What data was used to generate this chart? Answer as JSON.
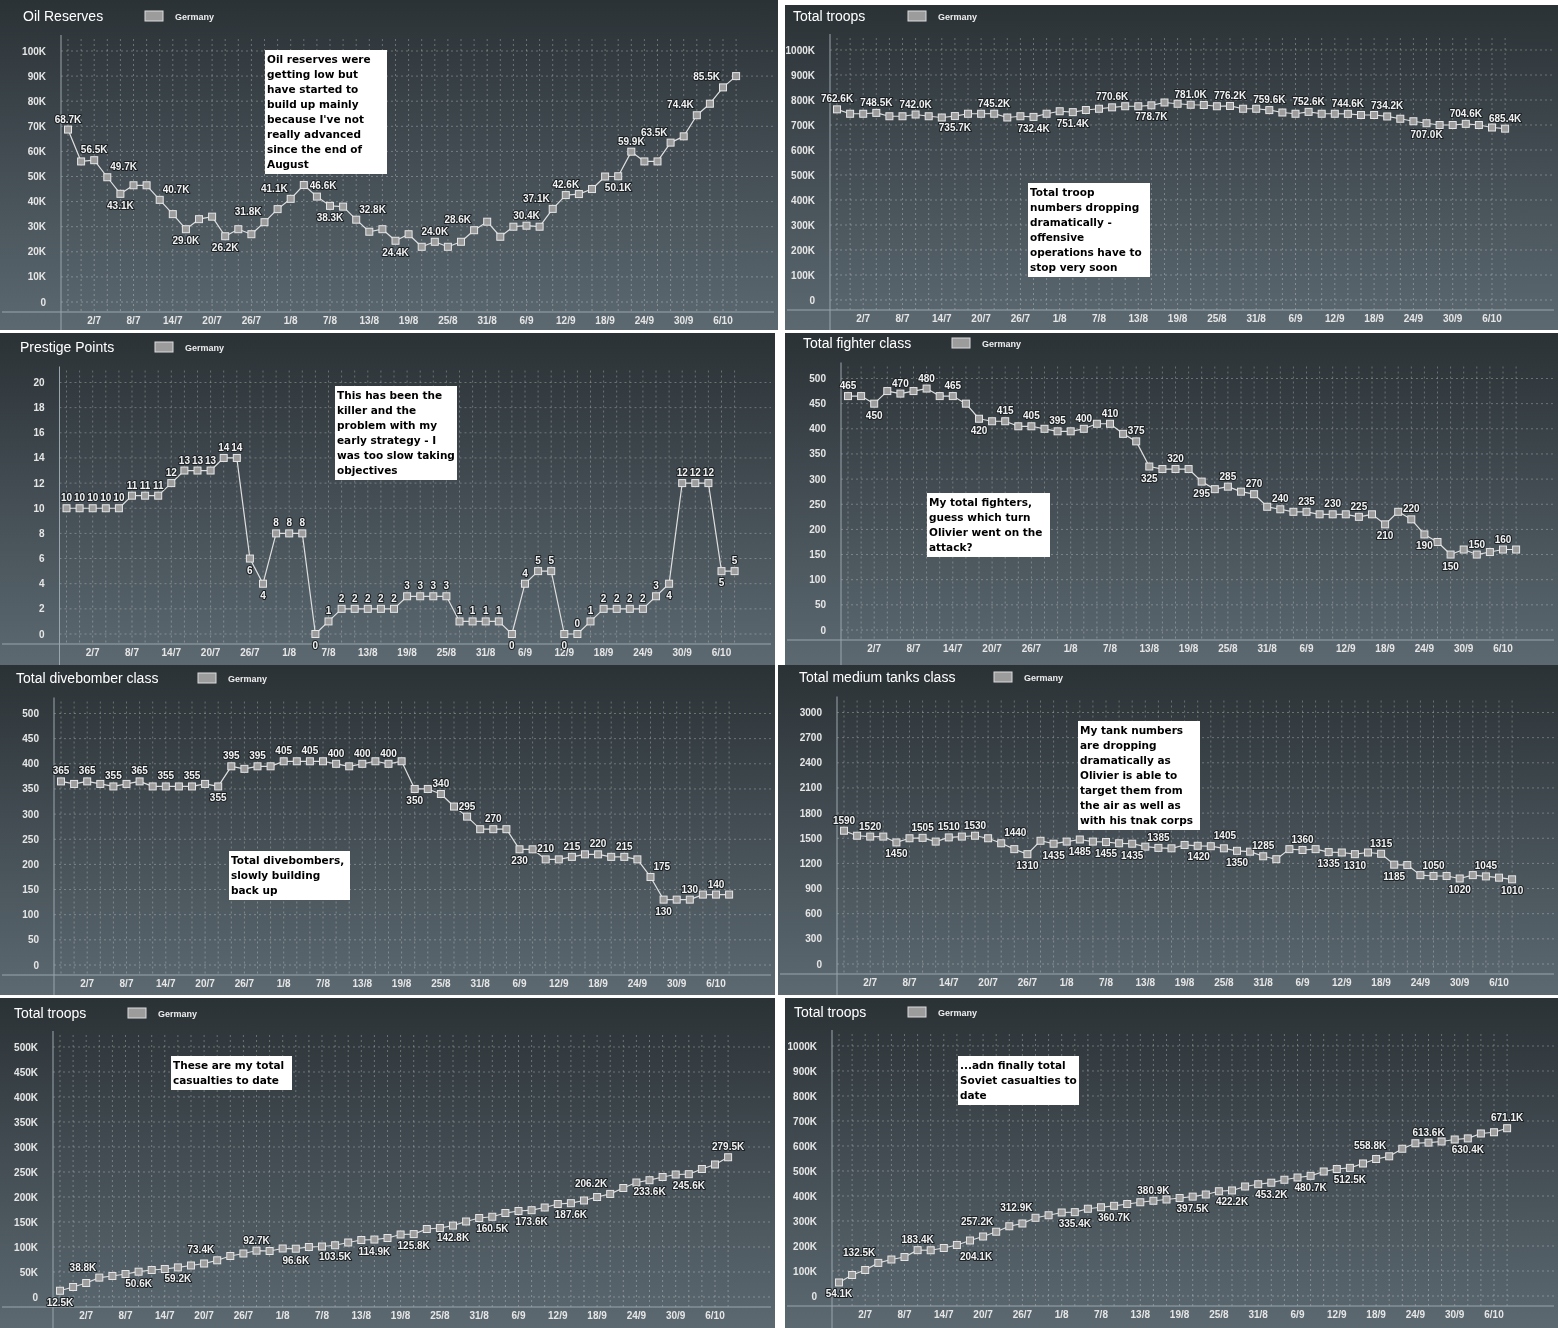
{
  "chart_data": [
    {
      "type": "line",
      "title": "Oil Reserves",
      "categories": [
        null,
        null,
        "2/7",
        null,
        null,
        "8/7",
        null,
        null,
        "14/7",
        null,
        null,
        "20/7",
        null,
        null,
        "26/7",
        null,
        null,
        "1/8",
        null,
        null,
        "7/8",
        null,
        null,
        "13/8",
        null,
        null,
        "19/8",
        null,
        null,
        "25/8",
        null,
        null,
        "31/8",
        null,
        null,
        "6/9",
        null,
        null,
        "12/9",
        null,
        null,
        "18/9",
        null,
        null,
        "24/9",
        null,
        null,
        "30/9",
        null,
        null,
        "6/10",
        null
      ],
      "series": [
        {
          "name": "Germany",
          "color": "#9c9c9c",
          "values": [
            68700,
            56000,
            56500,
            49700,
            43100,
            46500,
            46500,
            40700,
            35000,
            29000,
            33000,
            34000,
            26200,
            29000,
            27000,
            31800,
            37000,
            41100,
            46600,
            42000,
            38300,
            38000,
            32800,
            28000,
            29000,
            24400,
            27000,
            22000,
            24000,
            22000,
            24000,
            28600,
            32000,
            26000,
            30000,
            30400,
            30000,
            37100,
            42600,
            43000,
            45000,
            50000,
            50100,
            59900,
            56000,
            56000,
            63500,
            66000,
            74400,
            79000,
            85500,
            90000
          ],
          "value_labels": [
            "68.7K",
            null,
            "56.5K",
            "49.7K",
            "43.1K",
            null,
            null,
            "40.7K",
            null,
            "29.0K",
            null,
            null,
            "26.2K",
            null,
            null,
            "31.8K",
            null,
            "41.1K",
            "46.6K",
            null,
            "38.3K",
            null,
            "32.8K",
            null,
            null,
            "24.4K",
            null,
            null,
            "24.0K",
            null,
            null,
            "28.6K",
            null,
            null,
            null,
            "30.4K",
            null,
            "37.1K",
            "42.6K",
            null,
            null,
            null,
            "50.1K",
            "59.9K",
            null,
            null,
            "63.5K",
            null,
            "74.4K",
            null,
            "85.5K",
            null
          ]
        }
      ],
      "ylim": [
        0,
        100000
      ],
      "yticks": [
        0,
        {
          "value": 10000,
          "label": "10K"
        },
        {
          "value": 20000,
          "label": "20K"
        },
        {
          "value": 30000,
          "label": "30K"
        },
        {
          "value": 40000,
          "label": "40K"
        },
        {
          "value": 50000,
          "label": "50K"
        },
        {
          "value": 60000,
          "label": "60K"
        },
        {
          "value": 70000,
          "label": "70K"
        },
        {
          "value": 80000,
          "label": "80K"
        },
        {
          "value": 90000,
          "label": "90K"
        },
        {
          "value": 100000,
          "label": "100K"
        }
      ],
      "grid": true,
      "legend": "top left",
      "marker": "square",
      "annotations": [
        "Oil reserves were\ngetting low but\nhave started to\nbuild up mainly\nbecause I've not\nreally advanced\nsince the end of\nAugust"
      ]
    },
    {
      "type": "line",
      "title": "Total troops",
      "categories": [
        null,
        null,
        "2/7",
        null,
        null,
        "8/7",
        null,
        null,
        "14/7",
        null,
        null,
        "20/7",
        null,
        null,
        "26/7",
        null,
        null,
        "1/8",
        null,
        null,
        "7/8",
        null,
        null,
        "13/8",
        null,
        null,
        "19/8",
        null,
        null,
        "25/8",
        null,
        null,
        "31/8",
        null,
        null,
        "6/9",
        null,
        null,
        "12/9",
        null,
        null,
        "18/9",
        null,
        null,
        "24/9",
        null,
        null,
        "30/9",
        null,
        null,
        "6/10",
        null
      ],
      "series": [
        {
          "name": "Germany",
          "color": "#9c9c9c",
          "values": [
            762600,
            745000,
            745000,
            748500,
            735000,
            735000,
            742000,
            735000,
            730000,
            735700,
            745000,
            745000,
            745200,
            730000,
            735000,
            732400,
            745000,
            755000,
            751400,
            760000,
            765000,
            770600,
            775000,
            775000,
            778700,
            790000,
            785000,
            781000,
            780000,
            775000,
            776200,
            765000,
            765000,
            759600,
            750000,
            745000,
            752600,
            745000,
            745000,
            744600,
            740000,
            740000,
            734200,
            725000,
            715000,
            707000,
            700000,
            700000,
            704600,
            700000,
            690000,
            685400
          ],
          "value_labels": [
            "762.6K",
            null,
            null,
            "748.5K",
            null,
            null,
            "742.0K",
            null,
            null,
            "735.7K",
            null,
            null,
            "745.2K",
            null,
            null,
            "732.4K",
            null,
            null,
            "751.4K",
            null,
            null,
            "770.6K",
            null,
            null,
            "778.7K",
            null,
            null,
            "781.0K",
            null,
            null,
            "776.2K",
            null,
            null,
            "759.6K",
            null,
            null,
            "752.6K",
            null,
            null,
            "744.6K",
            null,
            null,
            "734.2K",
            null,
            null,
            "707.0K",
            null,
            null,
            "704.6K",
            null,
            null,
            "685.4K"
          ]
        }
      ],
      "ylim": [
        0,
        1000000
      ],
      "yticks": [
        0,
        {
          "value": 100000,
          "label": "100K"
        },
        {
          "value": 200000,
          "label": "200K"
        },
        {
          "value": 300000,
          "label": "300K"
        },
        {
          "value": 400000,
          "label": "400K"
        },
        {
          "value": 500000,
          "label": "500K"
        },
        {
          "value": 600000,
          "label": "600K"
        },
        {
          "value": 700000,
          "label": "700K"
        },
        {
          "value": 800000,
          "label": "800K"
        },
        {
          "value": 900000,
          "label": "900K"
        },
        {
          "value": 1000000,
          "label": "1000K"
        }
      ],
      "grid": true,
      "legend": "top left",
      "marker": "square",
      "annotations": [
        "Total troop\nnumbers dropping\ndramatically -\noffensive\noperations have to\nstop very soon"
      ]
    },
    {
      "type": "line",
      "title": "Prestige Points",
      "categories": [
        null,
        null,
        "2/7",
        null,
        null,
        "8/7",
        null,
        null,
        "14/7",
        null,
        null,
        "20/7",
        null,
        null,
        "26/7",
        null,
        null,
        "1/8",
        null,
        null,
        "7/8",
        null,
        null,
        "13/8",
        null,
        null,
        "19/8",
        null,
        null,
        "25/8",
        null,
        null,
        "31/8",
        null,
        null,
        "6/9",
        null,
        null,
        "12/9",
        null,
        null,
        "18/9",
        null,
        null,
        "24/9",
        null,
        null,
        "30/9",
        null,
        null,
        "6/10",
        null
      ],
      "series": [
        {
          "name": "Germany",
          "color": "#9c9c9c",
          "values": [
            10,
            10,
            10,
            10,
            10,
            11,
            11,
            11,
            12,
            13,
            13,
            13,
            14,
            14,
            6,
            4,
            8,
            8,
            8,
            0,
            1,
            2,
            2,
            2,
            2,
            2,
            3,
            3,
            3,
            3,
            1,
            1,
            1,
            1,
            0,
            4,
            5,
            5,
            0,
            0,
            1,
            2,
            2,
            2,
            2,
            3,
            4,
            12,
            12,
            12,
            5,
            5
          ]
        }
      ],
      "ylim": [
        0,
        20
      ],
      "yticks": [
        0,
        2,
        4,
        6,
        8,
        10,
        12,
        14,
        16,
        18,
        20
      ],
      "grid": true,
      "legend": "top left",
      "marker": "square",
      "data_labels": true,
      "annotations": [
        "This has been the\nkiller and the\nproblem with my\nearly strategy - I\nwas too slow taking\nobjectives"
      ]
    },
    {
      "type": "line",
      "title": "Total fighter class",
      "categories": [
        null,
        null,
        "2/7",
        null,
        null,
        "8/7",
        null,
        null,
        "14/7",
        null,
        null,
        "20/7",
        null,
        null,
        "26/7",
        null,
        null,
        "1/8",
        null,
        null,
        "7/8",
        null,
        null,
        "13/8",
        null,
        null,
        "19/8",
        null,
        null,
        "25/8",
        null,
        null,
        "31/8",
        null,
        null,
        "6/9",
        null,
        null,
        "12/9",
        null,
        null,
        "18/9",
        null,
        null,
        "24/9",
        null,
        null,
        "30/9",
        null,
        null,
        "6/10",
        null
      ],
      "series": [
        {
          "name": "Germany",
          "color": "#9c9c9c",
          "values": [
            465,
            465,
            450,
            475,
            470,
            475,
            480,
            465,
            465,
            450,
            420,
            415,
            415,
            405,
            405,
            400,
            395,
            395,
            400,
            410,
            410,
            390,
            375,
            325,
            320,
            320,
            320,
            295,
            280,
            285,
            275,
            270,
            245,
            240,
            235,
            235,
            230,
            230,
            230,
            225,
            230,
            210,
            235,
            220,
            190,
            175,
            150,
            160,
            150,
            155,
            160,
            160
          ],
          "value_labels": [
            "465",
            null,
            "450",
            null,
            "470",
            null,
            "480",
            null,
            "465",
            null,
            "420",
            null,
            "415",
            null,
            "405",
            null,
            "395",
            null,
            "400",
            null,
            "410",
            null,
            "375",
            "325",
            null,
            "320",
            null,
            "295",
            null,
            "285",
            null,
            "270",
            null,
            "240",
            null,
            "235",
            null,
            "230",
            null,
            "225",
            null,
            "210",
            null,
            "220",
            "190",
            null,
            "150",
            null,
            "150",
            null,
            "160",
            null
          ]
        }
      ],
      "ylim": [
        0,
        500
      ],
      "yticks": [
        0,
        50,
        100,
        150,
        200,
        250,
        300,
        350,
        400,
        450,
        500
      ],
      "grid": true,
      "legend": "top left",
      "marker": "square",
      "annotations": [
        "My total fighters,\nguess which turn\nOlivier went on the\nattack?"
      ]
    },
    {
      "type": "line",
      "title": "Total divebomber class",
      "categories": [
        null,
        null,
        "2/7",
        null,
        null,
        "8/7",
        null,
        null,
        "14/7",
        null,
        null,
        "20/7",
        null,
        null,
        "26/7",
        null,
        null,
        "1/8",
        null,
        null,
        "7/8",
        null,
        null,
        "13/8",
        null,
        null,
        "19/8",
        null,
        null,
        "25/8",
        null,
        null,
        "31/8",
        null,
        null,
        "6/9",
        null,
        null,
        "12/9",
        null,
        null,
        "18/9",
        null,
        null,
        "24/9",
        null,
        null,
        "30/9",
        null,
        null,
        "6/10",
        null
      ],
      "series": [
        {
          "name": "Germany",
          "color": "#9c9c9c",
          "values": [
            365,
            360,
            365,
            360,
            355,
            360,
            365,
            355,
            355,
            355,
            355,
            360,
            355,
            395,
            390,
            395,
            395,
            405,
            405,
            405,
            405,
            400,
            395,
            400,
            405,
            400,
            405,
            350,
            350,
            340,
            315,
            295,
            270,
            270,
            270,
            230,
            230,
            210,
            210,
            215,
            220,
            220,
            215,
            215,
            210,
            175,
            130,
            130,
            130,
            140,
            140,
            140
          ],
          "value_labels": [
            "365",
            null,
            "365",
            null,
            "355",
            null,
            "365",
            null,
            "355",
            null,
            "355",
            null,
            "355",
            "395",
            null,
            "395",
            null,
            "405",
            null,
            "405",
            null,
            "400",
            null,
            "400",
            null,
            "400",
            null,
            "350",
            null,
            "340",
            null,
            "295",
            null,
            "270",
            null,
            "230",
            null,
            "210",
            null,
            "215",
            null,
            "220",
            null,
            "215",
            null,
            "175",
            "130",
            null,
            "130",
            null,
            "140",
            null
          ]
        }
      ],
      "ylim": [
        0,
        500
      ],
      "yticks": [
        0,
        50,
        100,
        150,
        200,
        250,
        300,
        350,
        400,
        450,
        500
      ],
      "grid": true,
      "legend": "top left",
      "marker": "square",
      "annotations": [
        "Total divebombers,\nslowly building\nback up"
      ]
    },
    {
      "type": "line",
      "title": "Total medium tanks class",
      "categories": [
        null,
        null,
        "2/7",
        null,
        null,
        "8/7",
        null,
        null,
        "14/7",
        null,
        null,
        "20/7",
        null,
        null,
        "26/7",
        null,
        null,
        "1/8",
        null,
        null,
        "7/8",
        null,
        null,
        "13/8",
        null,
        null,
        "19/8",
        null,
        null,
        "25/8",
        null,
        null,
        "31/8",
        null,
        null,
        "6/9",
        null,
        null,
        "12/9",
        null,
        null,
        "18/9",
        null,
        null,
        "24/9",
        null,
        null,
        "30/9",
        null,
        null,
        "6/10",
        null
      ],
      "series": [
        {
          "name": "Germany",
          "color": "#9c9c9c",
          "values": [
            1590,
            1530,
            1520,
            1520,
            1450,
            1500,
            1505,
            1460,
            1510,
            1520,
            1530,
            1500,
            1440,
            1370,
            1310,
            1470,
            1435,
            1460,
            1485,
            1460,
            1455,
            1440,
            1435,
            1400,
            1385,
            1380,
            1420,
            1410,
            1405,
            1380,
            1350,
            1340,
            1285,
            1250,
            1370,
            1360,
            1370,
            1335,
            1330,
            1310,
            1330,
            1315,
            1185,
            1180,
            1060,
            1050,
            1050,
            1020,
            1060,
            1045,
            1030,
            1010
          ],
          "value_labels": [
            "1590",
            null,
            "1520",
            null,
            "1450",
            null,
            "1505",
            null,
            "1510",
            null,
            "1530",
            null,
            "1440",
            null,
            "1310",
            null,
            "1435",
            null,
            "1485",
            null,
            "1455",
            null,
            "1435",
            null,
            "1385",
            null,
            "1420",
            null,
            "1405",
            null,
            "1350",
            null,
            "1285",
            null,
            null,
            "1360",
            null,
            "1335",
            null,
            "1310",
            null,
            "1315",
            "1185",
            null,
            null,
            "1050",
            null,
            "1020",
            null,
            "1045",
            null,
            "1010"
          ]
        }
      ],
      "ylim": [
        0,
        3000
      ],
      "yticks": [
        0,
        300,
        600,
        900,
        1200,
        1500,
        1800,
        2100,
        2400,
        2700,
        3000
      ],
      "grid": true,
      "legend": "top left",
      "marker": "square",
      "annotations": [
        "My tank numbers\nare dropping\ndramatically as\nOlivier is able to\ntarget them from\nthe air as well as\nwith his tnak corps"
      ]
    },
    {
      "type": "line",
      "title": "Total troops",
      "categories": [
        null,
        null,
        "2/7",
        null,
        null,
        "8/7",
        null,
        null,
        "14/7",
        null,
        null,
        "20/7",
        null,
        null,
        "26/7",
        null,
        null,
        "1/8",
        null,
        null,
        "7/8",
        null,
        null,
        "13/8",
        null,
        null,
        "19/8",
        null,
        null,
        "25/8",
        null,
        null,
        "31/8",
        null,
        null,
        "6/9",
        null,
        null,
        "12/9",
        null,
        null,
        "18/9",
        null,
        null,
        "24/9",
        null,
        null,
        "30/9",
        null,
        null,
        "6/10",
        null
      ],
      "series": [
        {
          "name": "Germany",
          "color": "#9c9c9c",
          "values": [
            12500,
            20000,
            28000,
            38800,
            42000,
            46000,
            50600,
            54000,
            56000,
            59200,
            63000,
            67000,
            73400,
            82000,
            87000,
            92700,
            92000,
            97000,
            96600,
            100000,
            101000,
            103500,
            109000,
            114000,
            114900,
            118000,
            125000,
            125800,
            136000,
            138000,
            142800,
            151000,
            158000,
            160500,
            168000,
            172000,
            173600,
            179000,
            186000,
            187600,
            193000,
            200000,
            206200,
            218000,
            229000,
            233600,
            240000,
            245000,
            245600,
            256000,
            265000,
            279500
          ],
          "value_labels": [
            "12.5K",
            null,
            null,
            "38.8K",
            null,
            null,
            "50.6K",
            null,
            null,
            "59.2K",
            null,
            null,
            "73.4K",
            null,
            null,
            "92.7K",
            null,
            null,
            "96.6K",
            null,
            null,
            "103.5K",
            null,
            null,
            "114.9K",
            null,
            null,
            "125.8K",
            null,
            null,
            "142.8K",
            null,
            null,
            "160.5K",
            null,
            null,
            "173.6K",
            null,
            null,
            "187.6K",
            null,
            null,
            "206.2K",
            null,
            null,
            "233.6K",
            null,
            null,
            "245.6K",
            null,
            null,
            "279.5K"
          ]
        }
      ],
      "ylim": [
        0,
        500000
      ],
      "yticks": [
        0,
        {
          "value": 50000,
          "label": "50K"
        },
        {
          "value": 100000,
          "label": "100K"
        },
        {
          "value": 150000,
          "label": "150K"
        },
        {
          "value": 200000,
          "label": "200K"
        },
        {
          "value": 250000,
          "label": "250K"
        },
        {
          "value": 300000,
          "label": "300K"
        },
        {
          "value": 350000,
          "label": "350K"
        },
        {
          "value": 400000,
          "label": "400K"
        },
        {
          "value": 450000,
          "label": "450K"
        },
        {
          "value": 500000,
          "label": "500K"
        }
      ],
      "grid": true,
      "legend": "top left",
      "marker": "square",
      "annotations": [
        "These are my total\ncasualties to date"
      ]
    },
    {
      "type": "line",
      "title": "Total troops",
      "categories": [
        null,
        null,
        "2/7",
        null,
        null,
        "8/7",
        null,
        null,
        "14/7",
        null,
        null,
        "20/7",
        null,
        null,
        "26/7",
        null,
        null,
        "1/8",
        null,
        null,
        "7/8",
        null,
        null,
        "13/8",
        null,
        null,
        "19/8",
        null,
        null,
        "25/8",
        null,
        null,
        "31/8",
        null,
        null,
        "6/9",
        null,
        null,
        "12/9",
        null,
        null,
        "18/9",
        null,
        null,
        "24/9",
        null,
        null,
        "30/9",
        null,
        null,
        "6/10",
        null
      ],
      "series": [
        {
          "name": "Germany",
          "color": "#9c9c9c",
          "values": [
            54100,
            84000,
            104000,
            132500,
            146000,
            156000,
            183400,
            183000,
            192000,
            204100,
            222000,
            238000,
            257200,
            279000,
            290000,
            312900,
            323000,
            334000,
            335400,
            349000,
            355000,
            360700,
            368000,
            375000,
            380900,
            386000,
            392000,
            397500,
            406000,
            419000,
            422200,
            438000,
            447000,
            453200,
            465000,
            474000,
            480700,
            498000,
            508000,
            512500,
            530000,
            548000,
            558800,
            589000,
            611000,
            613600,
            618000,
            626000,
            630400,
            650000,
            655000,
            671100
          ],
          "value_labels": [
            "54.1K",
            null,
            null,
            "132.5K",
            null,
            null,
            "183.4K",
            null,
            null,
            "204.1K",
            null,
            null,
            "257.2K",
            null,
            null,
            "312.9K",
            null,
            null,
            "335.4K",
            null,
            null,
            "360.7K",
            null,
            null,
            "380.9K",
            null,
            null,
            "397.5K",
            null,
            null,
            "422.2K",
            null,
            null,
            "453.2K",
            null,
            null,
            "480.7K",
            null,
            null,
            "512.5K",
            null,
            null,
            "558.8K",
            null,
            null,
            "613.6K",
            null,
            null,
            "630.4K",
            null,
            null,
            "671.1K"
          ]
        }
      ],
      "ylim": [
        0,
        1000000
      ],
      "yticks": [
        0,
        {
          "value": 100000,
          "label": "100K"
        },
        {
          "value": 200000,
          "label": "200K"
        },
        {
          "value": 300000,
          "label": "300K"
        },
        {
          "value": 400000,
          "label": "400K"
        },
        {
          "value": 500000,
          "label": "500K"
        },
        {
          "value": 600000,
          "label": "600K"
        },
        {
          "value": 700000,
          "label": "700K"
        },
        {
          "value": 800000,
          "label": "800K"
        },
        {
          "value": 900000,
          "label": "900K"
        },
        {
          "value": 1000000,
          "label": "1000K"
        }
      ],
      "grid": true,
      "legend": "top left",
      "marker": "square",
      "annotations": [
        "...adn finally total\nSoviet casualties to\ndate"
      ]
    }
  ]
}
